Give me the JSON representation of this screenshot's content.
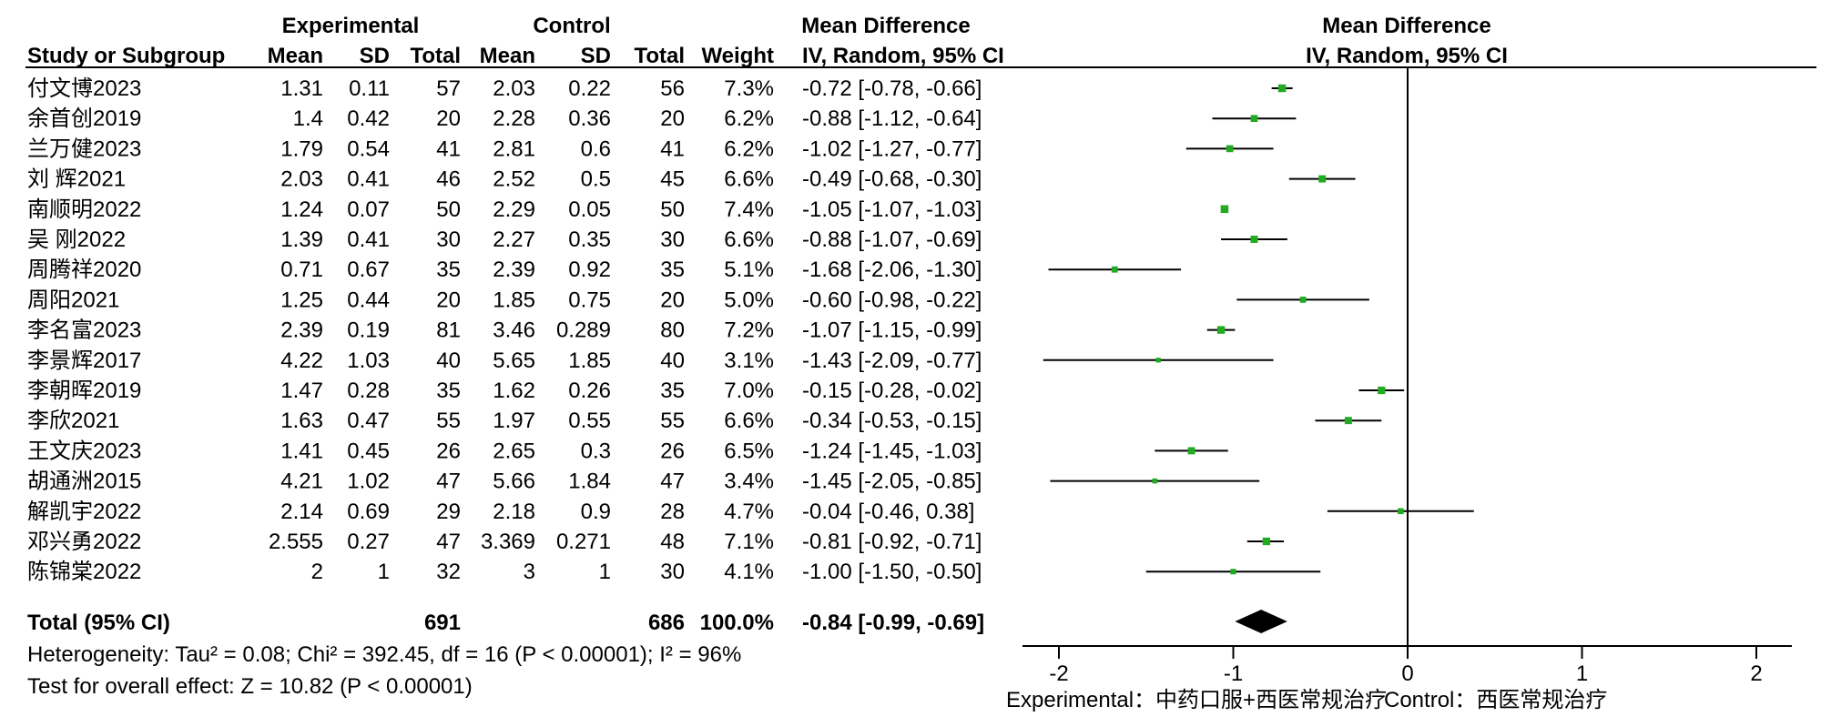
{
  "chart_data": {
    "type": "forest",
    "headers": {
      "group_experimental": "Experimental",
      "group_control": "Control",
      "md_title_table": "Mean Difference",
      "md_title_plot": "Mean Difference",
      "study": "Study or Subgroup",
      "mean": "Mean",
      "sd": "SD",
      "total": "Total",
      "weight": "Weight",
      "md_method_table": "IV, Random, 95% CI",
      "md_method_plot": "IV, Random, 95% CI"
    },
    "studies": [
      {
        "name": "付文博2023",
        "exp_mean": "1.31",
        "exp_sd": "0.11",
        "exp_total": "57",
        "ctl_mean": "2.03",
        "ctl_sd": "0.22",
        "ctl_total": "56",
        "weight": "7.3%",
        "ci_text": "-0.72 [-0.78, -0.66]",
        "md": -0.72,
        "lo": -0.78,
        "hi": -0.66,
        "w": 7.3
      },
      {
        "name": "余首创2019",
        "exp_mean": "1.4",
        "exp_sd": "0.42",
        "exp_total": "20",
        "ctl_mean": "2.28",
        "ctl_sd": "0.36",
        "ctl_total": "20",
        "weight": "6.2%",
        "ci_text": "-0.88 [-1.12, -0.64]",
        "md": -0.88,
        "lo": -1.12,
        "hi": -0.64,
        "w": 6.2
      },
      {
        "name": "兰万健2023",
        "exp_mean": "1.79",
        "exp_sd": "0.54",
        "exp_total": "41",
        "ctl_mean": "2.81",
        "ctl_sd": "0.6",
        "ctl_total": "41",
        "weight": "6.2%",
        "ci_text": "-1.02 [-1.27, -0.77]",
        "md": -1.02,
        "lo": -1.27,
        "hi": -0.77,
        "w": 6.2
      },
      {
        "name": "刘 辉2021",
        "exp_mean": "2.03",
        "exp_sd": "0.41",
        "exp_total": "46",
        "ctl_mean": "2.52",
        "ctl_sd": "0.5",
        "ctl_total": "45",
        "weight": "6.6%",
        "ci_text": "-0.49 [-0.68, -0.30]",
        "md": -0.49,
        "lo": -0.68,
        "hi": -0.3,
        "w": 6.6
      },
      {
        "name": "南顺明2022",
        "exp_mean": "1.24",
        "exp_sd": "0.07",
        "exp_total": "50",
        "ctl_mean": "2.29",
        "ctl_sd": "0.05",
        "ctl_total": "50",
        "weight": "7.4%",
        "ci_text": "-1.05 [-1.07, -1.03]",
        "md": -1.05,
        "lo": -1.07,
        "hi": -1.03,
        "w": 7.4
      },
      {
        "name": "吴 刚2022",
        "exp_mean": "1.39",
        "exp_sd": "0.41",
        "exp_total": "30",
        "ctl_mean": "2.27",
        "ctl_sd": "0.35",
        "ctl_total": "30",
        "weight": "6.6%",
        "ci_text": "-0.88 [-1.07, -0.69]",
        "md": -0.88,
        "lo": -1.07,
        "hi": -0.69,
        "w": 6.6
      },
      {
        "name": "周腾祥2020",
        "exp_mean": "0.71",
        "exp_sd": "0.67",
        "exp_total": "35",
        "ctl_mean": "2.39",
        "ctl_sd": "0.92",
        "ctl_total": "35",
        "weight": "5.1%",
        "ci_text": "-1.68 [-2.06, -1.30]",
        "md": -1.68,
        "lo": -2.06,
        "hi": -1.3,
        "w": 5.1
      },
      {
        "name": "周阳2021",
        "exp_mean": "1.25",
        "exp_sd": "0.44",
        "exp_total": "20",
        "ctl_mean": "1.85",
        "ctl_sd": "0.75",
        "ctl_total": "20",
        "weight": "5.0%",
        "ci_text": "-0.60 [-0.98, -0.22]",
        "md": -0.6,
        "lo": -0.98,
        "hi": -0.22,
        "w": 5.0
      },
      {
        "name": "李名富2023",
        "exp_mean": "2.39",
        "exp_sd": "0.19",
        "exp_total": "81",
        "ctl_mean": "3.46",
        "ctl_sd": "0.289",
        "ctl_total": "80",
        "weight": "7.2%",
        "ci_text": "-1.07 [-1.15, -0.99]",
        "md": -1.07,
        "lo": -1.15,
        "hi": -0.99,
        "w": 7.2
      },
      {
        "name": "李景辉2017",
        "exp_mean": "4.22",
        "exp_sd": "1.03",
        "exp_total": "40",
        "ctl_mean": "5.65",
        "ctl_sd": "1.85",
        "ctl_total": "40",
        "weight": "3.1%",
        "ci_text": "-1.43 [-2.09, -0.77]",
        "md": -1.43,
        "lo": -2.09,
        "hi": -0.77,
        "w": 3.1
      },
      {
        "name": "李朝晖2019",
        "exp_mean": "1.47",
        "exp_sd": "0.28",
        "exp_total": "35",
        "ctl_mean": "1.62",
        "ctl_sd": "0.26",
        "ctl_total": "35",
        "weight": "7.0%",
        "ci_text": "-0.15 [-0.28, -0.02]",
        "md": -0.15,
        "lo": -0.28,
        "hi": -0.02,
        "w": 7.0
      },
      {
        "name": "李欣2021",
        "exp_mean": "1.63",
        "exp_sd": "0.47",
        "exp_total": "55",
        "ctl_mean": "1.97",
        "ctl_sd": "0.55",
        "ctl_total": "55",
        "weight": "6.6%",
        "ci_text": "-0.34 [-0.53, -0.15]",
        "md": -0.34,
        "lo": -0.53,
        "hi": -0.15,
        "w": 6.6
      },
      {
        "name": "王文庆2023",
        "exp_mean": "1.41",
        "exp_sd": "0.45",
        "exp_total": "26",
        "ctl_mean": "2.65",
        "ctl_sd": "0.3",
        "ctl_total": "26",
        "weight": "6.5%",
        "ci_text": "-1.24 [-1.45, -1.03]",
        "md": -1.24,
        "lo": -1.45,
        "hi": -1.03,
        "w": 6.5
      },
      {
        "name": "胡通洲2015",
        "exp_mean": "4.21",
        "exp_sd": "1.02",
        "exp_total": "47",
        "ctl_mean": "5.66",
        "ctl_sd": "1.84",
        "ctl_total": "47",
        "weight": "3.4%",
        "ci_text": "-1.45 [-2.05, -0.85]",
        "md": -1.45,
        "lo": -2.05,
        "hi": -0.85,
        "w": 3.4
      },
      {
        "name": "解凯宇2022",
        "exp_mean": "2.14",
        "exp_sd": "0.69",
        "exp_total": "29",
        "ctl_mean": "2.18",
        "ctl_sd": "0.9",
        "ctl_total": "28",
        "weight": "4.7%",
        "ci_text": "-0.04 [-0.46, 0.38]",
        "md": -0.04,
        "lo": -0.46,
        "hi": 0.38,
        "w": 4.7
      },
      {
        "name": "邓兴勇2022",
        "exp_mean": "2.555",
        "exp_sd": "0.27",
        "exp_total": "47",
        "ctl_mean": "3.369",
        "ctl_sd": "0.271",
        "ctl_total": "48",
        "weight": "7.1%",
        "ci_text": "-0.81 [-0.92, -0.71]",
        "md": -0.81,
        "lo": -0.92,
        "hi": -0.71,
        "w": 7.1
      },
      {
        "name": "陈锦棠2022",
        "exp_mean": "2",
        "exp_sd": "1",
        "exp_total": "32",
        "ctl_mean": "3",
        "ctl_sd": "1",
        "ctl_total": "30",
        "weight": "4.1%",
        "ci_text": "-1.00 [-1.50, -0.50]",
        "md": -1.0,
        "lo": -1.5,
        "hi": -0.5,
        "w": 4.1
      }
    ],
    "total": {
      "label": "Total (95% CI)",
      "exp_total": "691",
      "ctl_total": "686",
      "weight": "100.0%",
      "ci_text": "-0.84 [-0.99, -0.69]",
      "md": -0.84,
      "lo": -0.99,
      "hi": -0.69
    },
    "heterogeneity": "Heterogeneity: Tau² = 0.08; Chi² = 392.45, df = 16 (P < 0.00001); I² = 96%",
    "overall_effect": "Test for overall effect: Z = 10.82 (P < 0.00001)",
    "axis": {
      "min": -2,
      "max": 2,
      "ticks": [
        -2,
        -1,
        0,
        1,
        2
      ],
      "tick_labels": [
        "-2",
        "-1",
        "0",
        "1",
        "2"
      ],
      "left_label": "Experimental：中药口服+西医常规治疗",
      "right_label": "Control：西医常规治疗"
    },
    "colors": {
      "marker": "#22aa22",
      "line": "#000000",
      "diamond": "#000000"
    }
  }
}
